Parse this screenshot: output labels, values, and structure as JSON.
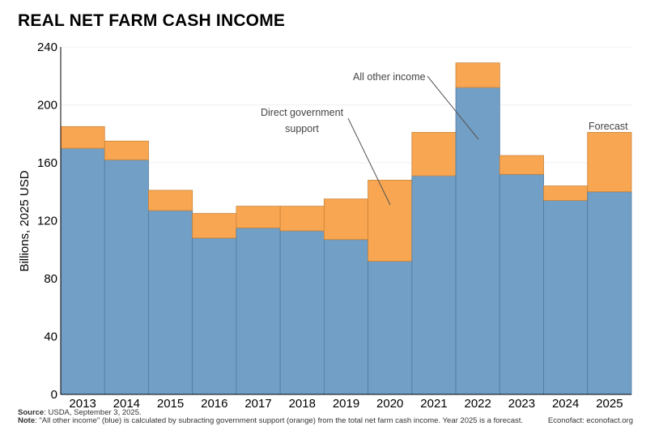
{
  "title": "REAL NET FARM CASH INCOME",
  "chart_data": {
    "type": "bar",
    "stacked": true,
    "categories": [
      "2013",
      "2014",
      "2015",
      "2016",
      "2017",
      "2018",
      "2019",
      "2020",
      "2021",
      "2022",
      "2023",
      "2024",
      "2025"
    ],
    "series": [
      {
        "name": "All other income",
        "color": "#729fc6",
        "values": [
          170,
          162,
          127,
          108,
          115,
          113,
          107,
          92,
          151,
          212,
          152,
          134,
          140
        ]
      },
      {
        "name": "Direct government support",
        "color": "#f8a652",
        "values": [
          15,
          13,
          14,
          17,
          15,
          17,
          28,
          56,
          30,
          17,
          13,
          10,
          41
        ]
      }
    ],
    "ylabel": "Billions, 2025 USD",
    "ylim": [
      0,
      240
    ],
    "yticks": [
      0,
      40,
      80,
      120,
      160,
      200,
      240
    ],
    "grid": true,
    "annotations": [
      {
        "label": "All other income"
      },
      {
        "label_line1": "Direct government",
        "label_line2": "support"
      },
      {
        "label": "Forecast"
      }
    ]
  },
  "footer": {
    "source_label": "Source",
    "source_text": ": USDA, September 3, 2025.",
    "note_label": "Note",
    "note_text": ": \"All other income\" (blue) is calculated by subracting government support (orange) from the total net farm cash income. Year 2025 is a forecast.",
    "credit": "Econofact: econofact.org"
  }
}
